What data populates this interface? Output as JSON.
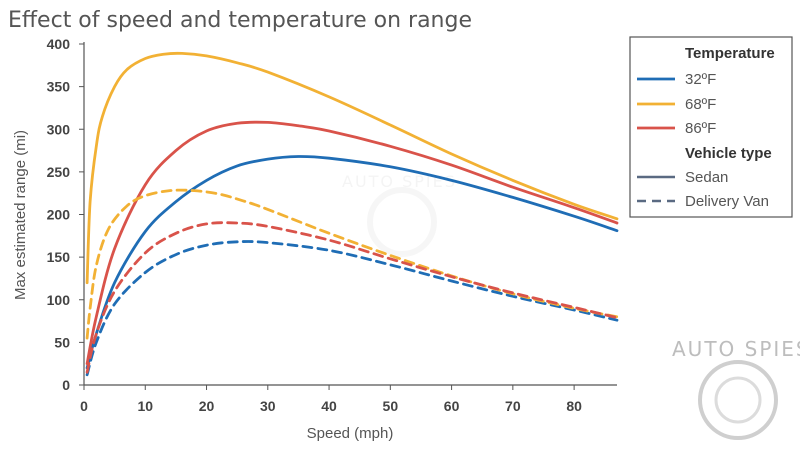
{
  "chart_data": {
    "type": "line",
    "title": "Effect of speed and temperature on range",
    "xlabel": "Speed (mph)",
    "ylabel": "Max estimated range (mi)",
    "xlim": [
      0,
      87
    ],
    "ylim": [
      0,
      400
    ],
    "x_ticks": [
      "0",
      "10",
      "20",
      "30",
      "40",
      "50",
      "60",
      "70",
      "80"
    ],
    "y_ticks": [
      "0",
      "50",
      "100",
      "150",
      "200",
      "250",
      "300",
      "350",
      "400"
    ],
    "grid": false,
    "legend_position": "right",
    "legend": {
      "temperature_title": "Temperature",
      "vehicle_title": "Vehicle type",
      "temperatures": [
        {
          "label": "32ºF",
          "color": "#1f6db5"
        },
        {
          "label": "68ºF",
          "color": "#f2b134"
        },
        {
          "label": "86ºF",
          "color": "#d9534a"
        }
      ],
      "vehicle_types": [
        {
          "label": "Sedan",
          "style": "solid"
        },
        {
          "label": "Delivery Van",
          "style": "dashed"
        }
      ]
    },
    "series": [
      {
        "temperature": "32ºF",
        "vehicle": "Sedan",
        "color": "#1f6db5",
        "style": "solid",
        "x": [
          0.5,
          2,
          5,
          10,
          15,
          20,
          25,
          30,
          35,
          40,
          50,
          60,
          70,
          80,
          87
        ],
        "y": [
          20,
          60,
          120,
          180,
          215,
          240,
          257,
          265,
          268,
          266,
          256,
          240,
          220,
          198,
          181
        ]
      },
      {
        "temperature": "68ºF",
        "vehicle": "Sedan",
        "color": "#f2b134",
        "style": "solid",
        "x": [
          0.5,
          1,
          2,
          3,
          5,
          7,
          10,
          13,
          16,
          20,
          25,
          30,
          40,
          50,
          60,
          70,
          80,
          87
        ],
        "y": [
          120,
          215,
          280,
          315,
          350,
          370,
          383,
          388,
          389,
          386,
          378,
          367,
          338,
          305,
          271,
          240,
          212,
          195
        ]
      },
      {
        "temperature": "86ºF",
        "vehicle": "Sedan",
        "color": "#d9534a",
        "style": "solid",
        "x": [
          0.5,
          2,
          5,
          10,
          15,
          20,
          25,
          30,
          35,
          40,
          50,
          60,
          70,
          80,
          87
        ],
        "y": [
          25,
          80,
          160,
          235,
          275,
          298,
          307,
          308,
          304,
          298,
          280,
          258,
          232,
          208,
          190
        ]
      },
      {
        "temperature": "32ºF",
        "vehicle": "Delivery Van",
        "color": "#1f6db5",
        "style": "dashed",
        "x": [
          0.5,
          2,
          5,
          10,
          15,
          20,
          25,
          30,
          40,
          50,
          60,
          70,
          80,
          87
        ],
        "y": [
          12,
          50,
          95,
          132,
          153,
          164,
          168,
          167,
          158,
          141,
          122,
          104,
          88,
          76
        ]
      },
      {
        "temperature": "68ºF",
        "vehicle": "Delivery Van",
        "color": "#f2b134",
        "style": "dashed",
        "x": [
          0.5,
          1,
          2,
          4,
          7,
          10,
          14,
          18,
          22,
          26,
          30,
          40,
          50,
          60,
          70,
          80,
          87
        ],
        "y": [
          55,
          90,
          140,
          183,
          210,
          222,
          228,
          228,
          224,
          216,
          206,
          178,
          152,
          128,
          107,
          90,
          80
        ]
      },
      {
        "temperature": "86ºF",
        "vehicle": "Delivery Van",
        "color": "#d9534a",
        "style": "dashed",
        "x": [
          0.5,
          2,
          5,
          10,
          15,
          20,
          25,
          30,
          40,
          50,
          60,
          70,
          80,
          87
        ],
        "y": [
          15,
          60,
          110,
          155,
          178,
          189,
          190,
          186,
          170,
          148,
          127,
          108,
          91,
          79
        ]
      }
    ]
  },
  "watermark": {
    "text": "AUTO SPIES"
  }
}
